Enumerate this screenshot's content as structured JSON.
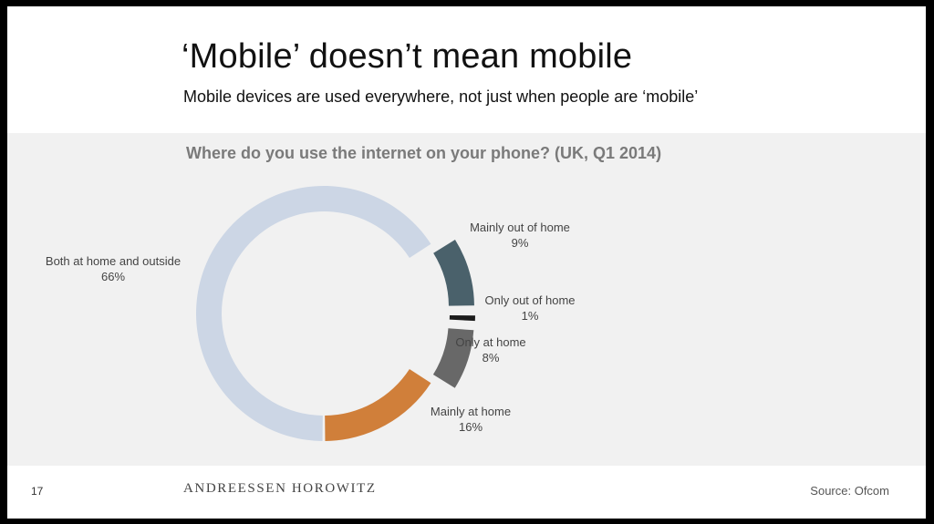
{
  "slide": {
    "title": "‘Mobile’ doesn’t mean mobile",
    "subtitle": "Mobile devices are used everywhere, not just when people are ‘mobile’",
    "page_number": "17",
    "logo_text": "ANDREESSEN HOROWITZ",
    "source": "Source: Ofcom"
  },
  "chart_data": {
    "type": "pie",
    "style": "donut",
    "title": "Where do you use the internet on your phone? (UK, Q1 2014)",
    "slices": [
      {
        "label": "Both at home and outside",
        "value": 66,
        "value_label": "66%",
        "color": "#ccd6e5"
      },
      {
        "label": "Mainly out of home",
        "value": 9,
        "value_label": "9%",
        "color": "#4a616b"
      },
      {
        "label": "Only out of home",
        "value": 1,
        "value_label": "1%",
        "color": "#1c1c1c"
      },
      {
        "label": "Only at home",
        "value": 8,
        "value_label": "8%",
        "color": "#686868"
      },
      {
        "label": "Mainly at home",
        "value": 16,
        "value_label": "16%",
        "color": "#d07f3a"
      }
    ]
  }
}
